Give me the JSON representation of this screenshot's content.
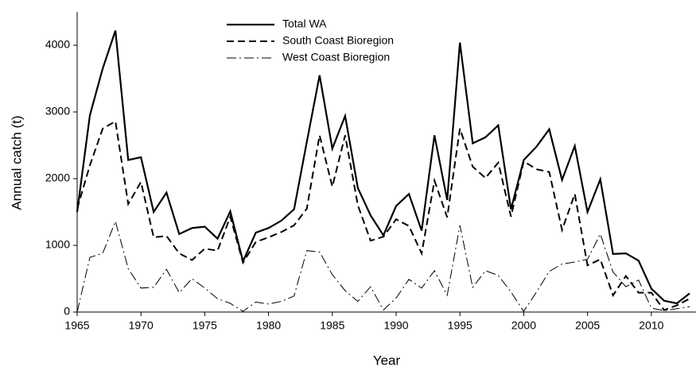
{
  "chart_data": {
    "type": "line",
    "x_label": "Year",
    "y_label": "Annual catch (t)",
    "x": [
      1965,
      1966,
      1967,
      1968,
      1969,
      1970,
      1971,
      1972,
      1973,
      1974,
      1975,
      1976,
      1977,
      1978,
      1979,
      1980,
      1981,
      1982,
      1983,
      1984,
      1985,
      1986,
      1987,
      1988,
      1989,
      1990,
      1991,
      1992,
      1993,
      1994,
      1995,
      1996,
      1997,
      1998,
      1999,
      2000,
      2001,
      2002,
      2003,
      2004,
      2005,
      2006,
      2007,
      2008,
      2009,
      2010,
      2011,
      2012,
      2013
    ],
    "series": [
      {
        "name": "Total WA",
        "color": "#000000",
        "linestyle": "solid",
        "values": [
          1500,
          2950,
          3650,
          4220,
          2280,
          2320,
          1500,
          1790,
          1170,
          1260,
          1280,
          1100,
          1510,
          760,
          1190,
          1260,
          1370,
          1540,
          2550,
          3550,
          2450,
          2940,
          1860,
          1450,
          1150,
          1590,
          1770,
          1220,
          2650,
          1680,
          4040,
          2530,
          2620,
          2800,
          1540,
          2280,
          2480,
          2740,
          1980,
          2490,
          1500,
          1990,
          870,
          880,
          770,
          350,
          170,
          130,
          280
        ]
      },
      {
        "name": "South Coast Bioregion",
        "color": "#000000",
        "linestyle": "dashed",
        "values": [
          1550,
          2200,
          2750,
          2860,
          1620,
          1950,
          1120,
          1140,
          880,
          780,
          950,
          920,
          1430,
          740,
          1050,
          1120,
          1200,
          1300,
          1550,
          2650,
          1880,
          2650,
          1600,
          1070,
          1130,
          1390,
          1290,
          880,
          1970,
          1420,
          2750,
          2180,
          2010,
          2240,
          1430,
          2260,
          2140,
          2100,
          1230,
          1770,
          700,
          790,
          250,
          540,
          290,
          290,
          30,
          100,
          200
        ]
      },
      {
        "name": "West Coast Bioregion",
        "color": "#000000",
        "linestyle": "dashdot",
        "values": [
          0,
          820,
          880,
          1360,
          650,
          360,
          370,
          640,
          290,
          500,
          360,
          200,
          130,
          10,
          150,
          120,
          160,
          240,
          920,
          900,
          560,
          320,
          160,
          380,
          30,
          210,
          490,
          360,
          620,
          250,
          1300,
          370,
          620,
          550,
          300,
          10,
          300,
          610,
          720,
          750,
          790,
          1170,
          600,
          380,
          480,
          60,
          20,
          50,
          80
        ]
      }
    ],
    "xlim": [
      1965,
      2013.5
    ],
    "xticks": [
      1965,
      1970,
      1975,
      1980,
      1985,
      1990,
      1995,
      2000,
      2005,
      2010
    ],
    "ylim": [
      0,
      4500
    ],
    "yticks": [
      0,
      1000,
      2000,
      3000,
      4000
    ],
    "legend": "top"
  }
}
